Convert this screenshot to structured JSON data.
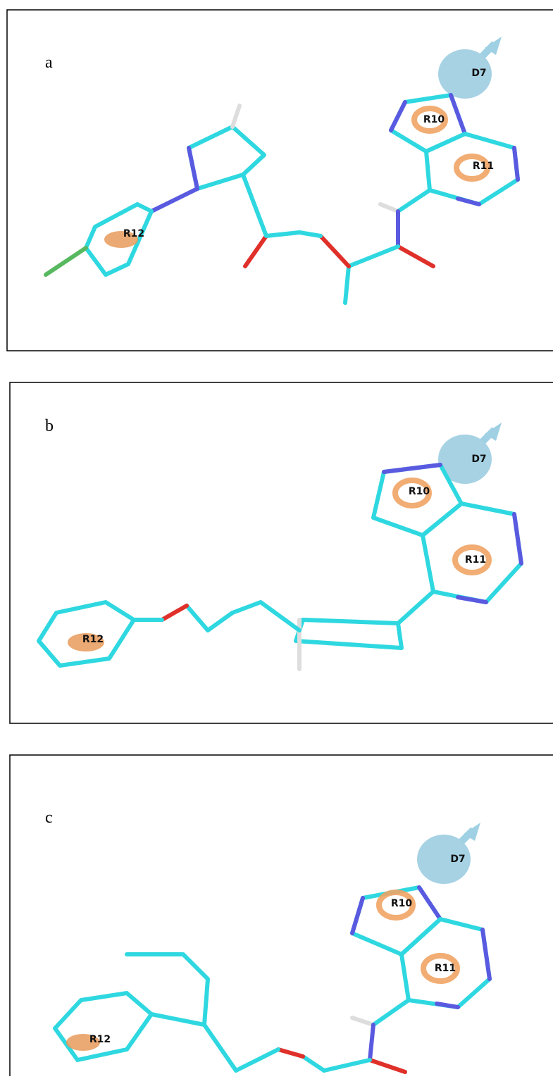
{
  "panels": [
    {
      "label": "a",
      "features": [
        "D7",
        "R10",
        "R11",
        "R12"
      ]
    },
    {
      "label": "b",
      "features": [
        "D7",
        "R10",
        "R11",
        "R12"
      ]
    },
    {
      "label": "c",
      "features": [
        "D7",
        "R10",
        "R11",
        "R12"
      ]
    }
  ]
}
